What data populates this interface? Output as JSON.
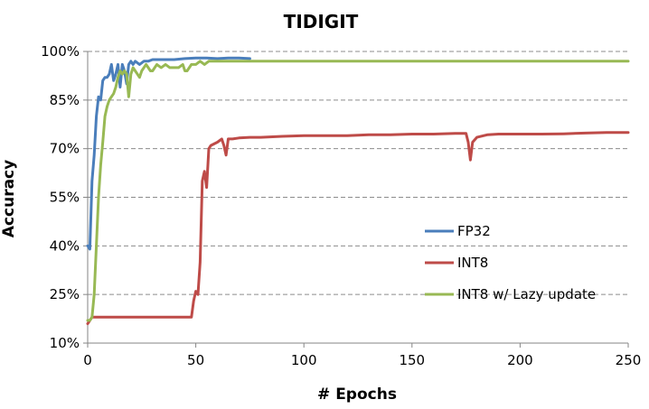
{
  "chart_data": {
    "type": "line",
    "title": "TIDIGIT",
    "xlabel": "# Epochs",
    "ylabel": "Accuracy",
    "xlim": [
      0,
      250
    ],
    "ylim": [
      10,
      100
    ],
    "xticks": [
      0,
      50,
      100,
      150,
      200,
      250
    ],
    "xtick_labels": [
      "0",
      "50",
      "100",
      "150",
      "200",
      "250"
    ],
    "yticks": [
      10,
      25,
      40,
      55,
      70,
      85,
      100
    ],
    "ytick_labels": [
      "10%",
      "25%",
      "40%",
      "55%",
      "70%",
      "85%",
      "100%"
    ],
    "grid": "horizontal dashed",
    "legend_position": "lower-right",
    "series": [
      {
        "name": "FP32",
        "color": "#4a7ebb",
        "x": [
          0,
          1,
          2,
          3,
          4,
          5,
          6,
          7,
          8,
          9,
          10,
          11,
          12,
          13,
          14,
          15,
          16,
          17,
          18,
          19,
          20,
          21,
          22,
          24,
          26,
          28,
          30,
          35,
          40,
          45,
          50,
          55,
          60,
          65,
          70,
          75
        ],
        "y": [
          40,
          39,
          60,
          68,
          80,
          86,
          85,
          91,
          92,
          92,
          93,
          96,
          91,
          93,
          96,
          89,
          96,
          94,
          90,
          96,
          97,
          96,
          97,
          96,
          97,
          97,
          97.5,
          97.5,
          97.5,
          97.8,
          98,
          98,
          97.8,
          98,
          98,
          97.8
        ]
      },
      {
        "name": "INT8",
        "color": "#be4b48",
        "x": [
          0,
          1,
          2,
          5,
          10,
          20,
          30,
          40,
          48,
          49,
          50,
          51,
          52,
          53,
          54,
          55,
          56,
          57,
          60,
          62,
          63,
          64,
          65,
          66,
          67,
          70,
          75,
          80,
          90,
          100,
          110,
          120,
          130,
          140,
          150,
          160,
          170,
          175,
          176,
          177,
          178,
          180,
          185,
          190,
          200,
          210,
          220,
          230,
          240,
          250
        ],
        "y": [
          16,
          17,
          18,
          18,
          18,
          18,
          18,
          18,
          18,
          23,
          26,
          25,
          35,
          60,
          63,
          58,
          70,
          71,
          72,
          73,
          71,
          68,
          73,
          73,
          73,
          73.3,
          73.5,
          73.5,
          73.8,
          74,
          74,
          74,
          74.3,
          74.3,
          74.5,
          74.5,
          74.7,
          74.7,
          72,
          66.5,
          72,
          73.5,
          74.3,
          74.5,
          74.5,
          74.5,
          74.6,
          74.8,
          75,
          75
        ]
      },
      {
        "name": "INT8 w/ Lazy update",
        "color": "#98b954",
        "x": [
          0,
          1,
          2,
          3,
          4,
          5,
          6,
          7,
          8,
          9,
          10,
          11,
          12,
          13,
          14,
          15,
          16,
          17,
          18,
          19,
          20,
          21,
          22,
          23,
          24,
          25,
          26,
          27,
          28,
          29,
          30,
          32,
          34,
          36,
          38,
          40,
          42,
          44,
          45,
          46,
          48,
          50,
          52,
          54,
          56,
          58,
          60,
          65,
          70,
          80,
          100,
          150,
          200,
          250
        ],
        "y": [
          17,
          17,
          18,
          25,
          40,
          55,
          65,
          72,
          80,
          83,
          85,
          86,
          87,
          89,
          92,
          94,
          93,
          94,
          93,
          86,
          93,
          95,
          94,
          93,
          92,
          94,
          95,
          96,
          95,
          94,
          94,
          96,
          95,
          96,
          95,
          95,
          95,
          96,
          94,
          94,
          96,
          96,
          97,
          96,
          97,
          97,
          97,
          97,
          97,
          97,
          97,
          97,
          97,
          97
        ]
      }
    ]
  }
}
